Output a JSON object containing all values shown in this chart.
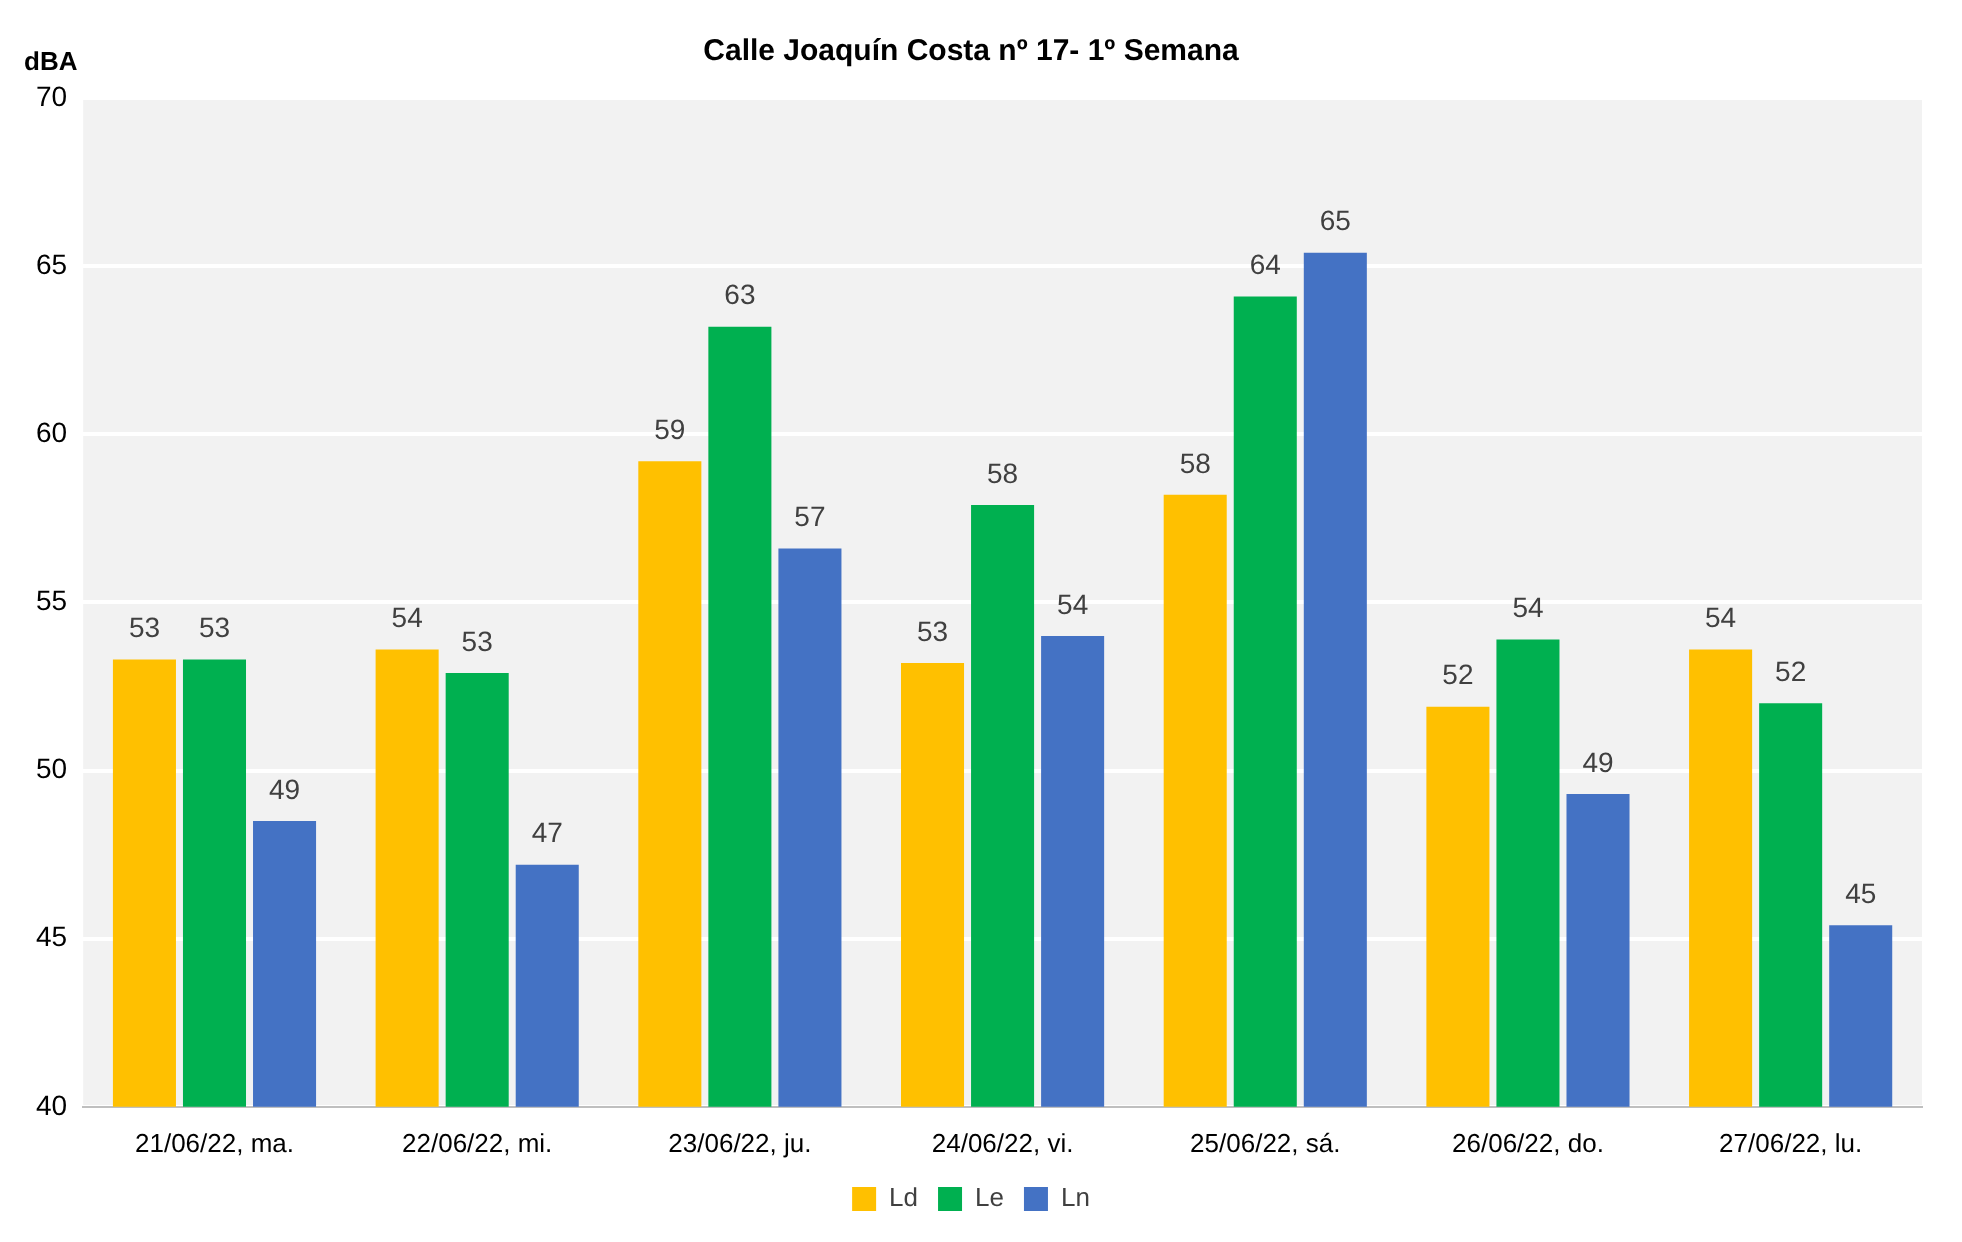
{
  "chart_data": {
    "type": "bar",
    "title": "Calle Joaquín Costa nº 17- 1º Semana",
    "ylabel": "dBA",
    "categories": [
      "21/06/22, ma.",
      "22/06/22, mi.",
      "23/06/22, ju.",
      "24/06/22, vi.",
      "25/06/22, sá.",
      "26/06/22, do.",
      "27/06/22, lu."
    ],
    "series": [
      {
        "name": "Ld",
        "color": "#ffc000",
        "values": [
          53.3,
          53.6,
          59.2,
          53.2,
          58.2,
          51.9,
          53.6
        ],
        "value_labels": [
          "53",
          "54",
          "59",
          "53",
          "58",
          "52",
          "54"
        ]
      },
      {
        "name": "Le",
        "color": "#00b050",
        "values": [
          53.3,
          52.9,
          63.2,
          57.9,
          64.1,
          53.9,
          52.0
        ],
        "value_labels": [
          "53",
          "53",
          "63",
          "58",
          "64",
          "54",
          "52"
        ]
      },
      {
        "name": "Ln",
        "color": "#4472c4",
        "values": [
          48.5,
          47.2,
          56.6,
          54.0,
          65.4,
          49.3,
          45.4
        ],
        "value_labels": [
          "49",
          "47",
          "57",
          "54",
          "65",
          "49",
          "45"
        ]
      }
    ],
    "ylim": [
      40,
      70
    ],
    "yticks": [
      40,
      45,
      50,
      55,
      60,
      65,
      70
    ],
    "grid": "y",
    "legend": "bottom"
  }
}
